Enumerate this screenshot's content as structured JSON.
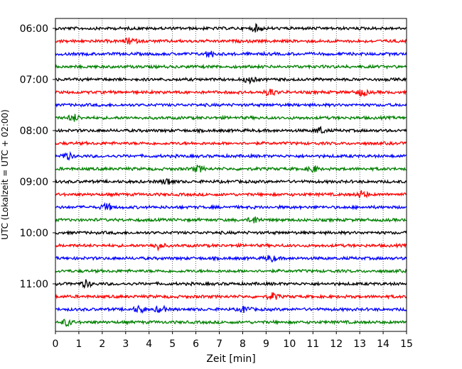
{
  "chart_data": {
    "type": "line",
    "title": "",
    "xlabel": "Zeit  [min]",
    "ylabel": "UTC (Lokalzeit = UTC + 02:00)",
    "xlim": [
      0,
      15
    ],
    "x_ticks": [
      0,
      1,
      2,
      3,
      4,
      5,
      6,
      7,
      8,
      9,
      10,
      11,
      12,
      13,
      14,
      15
    ],
    "y_ticks": [
      "06:00",
      "07:00",
      "08:00",
      "09:00",
      "10:00",
      "11:00"
    ],
    "grid": "vertical dotted",
    "trace_minutes": 15,
    "start_time": "06:00",
    "end_time": "11:45",
    "trace_colors": [
      "#000000",
      "#ff0000",
      "#0000ff",
      "#008000"
    ],
    "events": [
      {
        "time": "06:00",
        "minute": 8.6
      },
      {
        "time": "06:15",
        "minute": 3.2
      },
      {
        "time": "06:30",
        "minute": 6.6
      },
      {
        "time": "07:00",
        "minute": 8.3
      },
      {
        "time": "07:15",
        "minute": 9.2
      },
      {
        "time": "07:15",
        "minute": 13.1
      },
      {
        "time": "07:45",
        "minute": 0.8
      },
      {
        "time": "08:00",
        "minute": 11.3
      },
      {
        "time": "08:30",
        "minute": 0.5
      },
      {
        "time": "08:45",
        "minute": 6.1
      },
      {
        "time": "08:45",
        "minute": 11.0
      },
      {
        "time": "09:00",
        "minute": 4.8
      },
      {
        "time": "09:15",
        "minute": 13.1
      },
      {
        "time": "09:30",
        "minute": 2.2
      },
      {
        "time": "09:45",
        "minute": 8.5
      },
      {
        "time": "10:15",
        "minute": 4.4
      },
      {
        "time": "10:30",
        "minute": 9.2
      },
      {
        "time": "11:00",
        "minute": 1.3
      },
      {
        "time": "11:15",
        "minute": 9.3
      },
      {
        "time": "11:30",
        "minute": 3.6
      },
      {
        "time": "11:30",
        "minute": 4.5
      },
      {
        "time": "11:30",
        "minute": 8.1
      },
      {
        "time": "11:45",
        "minute": 0.5
      }
    ]
  }
}
